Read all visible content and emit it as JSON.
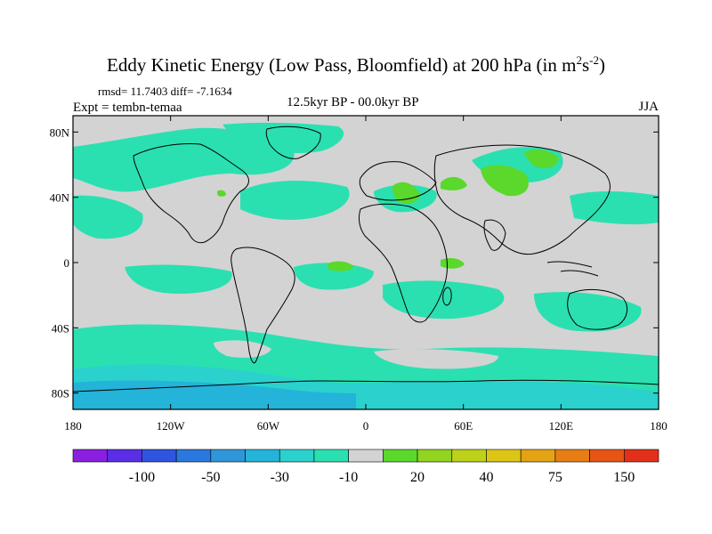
{
  "title": {
    "main": "Eddy Kinetic Energy (Low Pass, Bloomfield) at 200 hPa (in m",
    "sup1": "2",
    "mid": "s",
    "sup2": "-2",
    "end": ")"
  },
  "stats": {
    "rmsd_label": "rmsd= 11.7403 diff= -7.1634"
  },
  "experiment": "Expt = tembn-temaa",
  "period": "12.5kyr BP - 00.0kyr BP",
  "season": "JJA",
  "map": {
    "lat_labels": [
      "80N",
      "40N",
      "0",
      "40S",
      "80S"
    ],
    "lon_labels": [
      "180",
      "120W",
      "60W",
      "0",
      "60E",
      "120E",
      "180"
    ],
    "background_color": "#d3d3d3",
    "coastline_color": "#000000"
  },
  "colorbar": {
    "colors": [
      "#8a1fe0",
      "#5a2ee6",
      "#2f55e0",
      "#2a78df",
      "#2f96d9",
      "#24b3d9",
      "#2ad1cd",
      "#2be0b0",
      "#d3d3d3",
      "#5ad82c",
      "#92d41f",
      "#bcd11a",
      "#dcc514",
      "#e4a315",
      "#e77d14",
      "#e65514",
      "#e2301a"
    ],
    "labels": [
      "-100",
      "-50",
      "-30",
      "-10",
      "20",
      "40",
      "75",
      "150"
    ]
  }
}
